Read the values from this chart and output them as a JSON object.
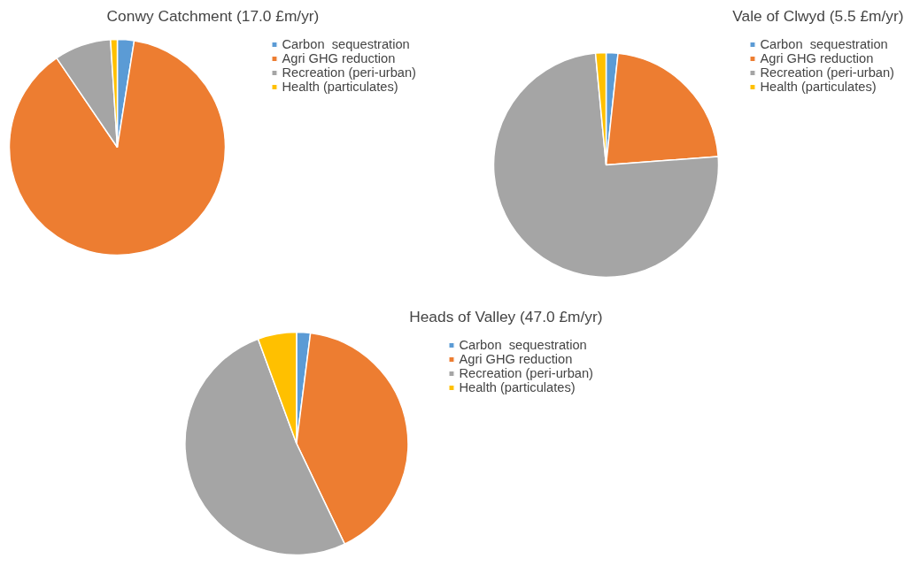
{
  "chart_data": [
    {
      "type": "pie",
      "title": "Conwy Catchment (17.0 £m/yr)",
      "categories": [
        "Carbon  sequestration",
        "Agri GHG reduction",
        "Recreation (peri-urban)",
        "Health (particulates)"
      ],
      "values": [
        2.5,
        88,
        8.5,
        1
      ],
      "colors": [
        "#5b9bd5",
        "#ed7d31",
        "#a5a5a5",
        "#ffc000"
      ],
      "legend": "right"
    },
    {
      "type": "pie",
      "title": "Vale of Clwyd (5.5 £m/yr)",
      "categories": [
        "Carbon  sequestration",
        "Agri GHG reduction",
        "Recreation (peri-urban)",
        "Health (particulates)"
      ],
      "values": [
        1.7,
        22.1,
        74.7,
        1.5
      ],
      "colors": [
        "#5b9bd5",
        "#ed7d31",
        "#a5a5a5",
        "#ffc000"
      ],
      "legend": "right"
    },
    {
      "type": "pie",
      "title": "Heads of Valley (47.0 £m/yr)",
      "categories": [
        "Carbon  sequestration",
        "Agri GHG reduction",
        "Recreation (peri-urban)",
        "Health (particulates)"
      ],
      "values": [
        2,
        40.9,
        51.5,
        5.6
      ],
      "colors": [
        "#5b9bd5",
        "#ed7d31",
        "#a5a5a5",
        "#ffc000"
      ],
      "legend": "right"
    }
  ]
}
